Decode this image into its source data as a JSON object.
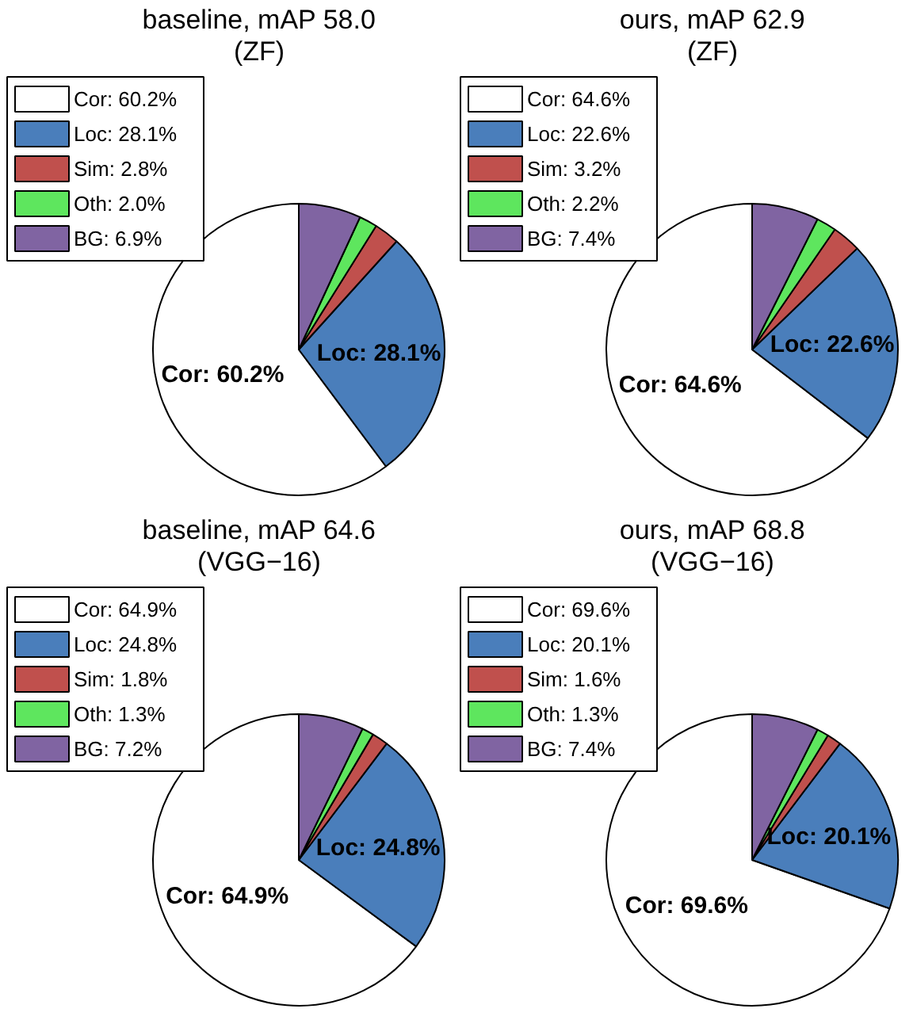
{
  "chart_data": [
    {
      "type": "pie",
      "title": "baseline, mAP 58.0",
      "subtitle": "(ZF)",
      "categories": [
        "Cor: 60.2%",
        "Loc: 28.1%",
        "Sim: 2.8%",
        "Oth: 2.0%",
        "BG: 6.9%"
      ],
      "values": [
        60.2,
        28.1,
        2.8,
        2.0,
        6.9
      ],
      "colors": [
        "#ffffff",
        "#4a7ebb",
        "#c0504d",
        "#5ee65e",
        "#8064a2"
      ],
      "value_labels": [
        "Cor: 60.2%",
        "Loc: 28.1%",
        null,
        null,
        null
      ],
      "legend": "top left"
    },
    {
      "type": "pie",
      "title": "ours, mAP 62.9",
      "subtitle": "(ZF)",
      "categories": [
        "Cor: 64.6%",
        "Loc: 22.6%",
        "Sim: 3.2%",
        "Oth: 2.2%",
        "BG: 7.4%"
      ],
      "values": [
        64.6,
        22.6,
        3.2,
        2.2,
        7.4
      ],
      "colors": [
        "#ffffff",
        "#4a7ebb",
        "#c0504d",
        "#5ee65e",
        "#8064a2"
      ],
      "value_labels": [
        "Cor: 64.6%",
        "Loc: 22.6%",
        null,
        null,
        null
      ],
      "legend": "top left"
    },
    {
      "type": "pie",
      "title": "baseline, mAP 64.6",
      "subtitle": "(VGG−16)",
      "categories": [
        "Cor: 64.9%",
        "Loc: 24.8%",
        "Sim: 1.8%",
        "Oth: 1.3%",
        "BG: 7.2%"
      ],
      "values": [
        64.9,
        24.8,
        1.8,
        1.3,
        7.2
      ],
      "colors": [
        "#ffffff",
        "#4a7ebb",
        "#c0504d",
        "#5ee65e",
        "#8064a2"
      ],
      "value_labels": [
        "Cor: 64.9%",
        "Loc: 24.8%",
        null,
        null,
        null
      ],
      "legend": "top left"
    },
    {
      "type": "pie",
      "title": "ours, mAP 68.8",
      "subtitle": "(VGG−16)",
      "categories": [
        "Cor: 69.6%",
        "Loc: 20.1%",
        "Sim: 1.6%",
        "Oth: 1.3%",
        "BG: 7.4%"
      ],
      "values": [
        69.6,
        20.1,
        1.6,
        1.3,
        7.4
      ],
      "colors": [
        "#ffffff",
        "#4a7ebb",
        "#c0504d",
        "#5ee65e",
        "#8064a2"
      ],
      "value_labels": [
        "Cor: 69.6%",
        "Loc: 20.1%",
        null,
        null,
        null
      ],
      "legend": "top left"
    }
  ]
}
